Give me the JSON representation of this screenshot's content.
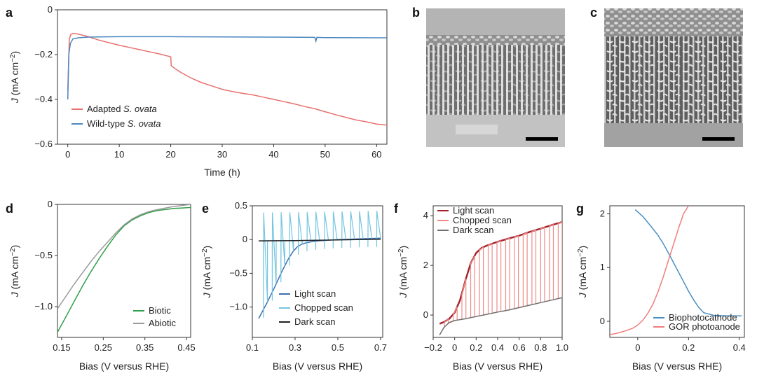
{
  "panel_labels": [
    "a",
    "b",
    "c",
    "d",
    "e",
    "f",
    "g"
  ],
  "chart_data": [
    {
      "panel": "a",
      "type": "line",
      "xlabel": "Time (h)",
      "ylabel_main": "J",
      "ylabel_unit": " (mA cm",
      "ylabel_sup": "−2",
      "ylabel_close": ")",
      "xlim": [
        -2,
        62
      ],
      "ylim": [
        -0.6,
        0
      ],
      "xticks": [
        0,
        10,
        20,
        30,
        40,
        50,
        60
      ],
      "yticks": [
        0,
        -0.2,
        -0.4,
        -0.6
      ],
      "ytick_labels": [
        "0",
        "−0.2",
        "−0.4",
        "−0.6"
      ],
      "series": [
        {
          "name_prefix": "Adapted ",
          "name_italic": "S. ovata",
          "color": "#e8706e",
          "x": [
            0,
            0.3,
            0.6,
            1,
            2,
            4,
            6,
            8,
            10,
            12,
            14,
            16,
            18,
            20,
            20.1,
            21,
            22,
            24,
            26,
            28,
            30,
            32,
            34,
            36,
            38,
            40,
            42,
            44,
            46,
            48,
            50,
            52,
            54,
            56,
            58,
            60,
            62
          ],
          "y": [
            -0.36,
            -0.13,
            -0.11,
            -0.105,
            -0.108,
            -0.12,
            -0.135,
            -0.147,
            -0.158,
            -0.168,
            -0.178,
            -0.188,
            -0.198,
            -0.21,
            -0.25,
            -0.265,
            -0.28,
            -0.305,
            -0.325,
            -0.34,
            -0.355,
            -0.365,
            -0.373,
            -0.38,
            -0.39,
            -0.4,
            -0.41,
            -0.42,
            -0.432,
            -0.442,
            -0.455,
            -0.468,
            -0.48,
            -0.492,
            -0.5,
            -0.51,
            -0.515
          ]
        },
        {
          "name_prefix": "Wild-type ",
          "name_italic": "S. ovata",
          "color": "#4a86c0",
          "x": [
            0,
            0.2,
            0.5,
            1,
            2,
            4,
            6,
            10,
            20,
            30,
            40,
            48,
            48.2,
            48.4,
            50,
            60,
            62
          ],
          "y": [
            -0.4,
            -0.2,
            -0.15,
            -0.13,
            -0.125,
            -0.122,
            -0.121,
            -0.12,
            -0.12,
            -0.121,
            -0.122,
            -0.123,
            -0.14,
            -0.123,
            -0.124,
            -0.125,
            -0.125
          ]
        }
      ]
    },
    {
      "panel": "b",
      "type": "image",
      "content": "SEM cross-section of vertical nanowire array with scale bar"
    },
    {
      "panel": "c",
      "type": "image",
      "content": "SEM cross-section of nanowire array covered with bacteria with scale bar"
    },
    {
      "panel": "d",
      "type": "line",
      "xlabel": "Bias (V versus RHE)",
      "ylabel_main": "J",
      "ylabel_unit": " (mA cm",
      "ylabel_sup": "−2",
      "ylabel_close": ")",
      "xlim": [
        0.14,
        0.46
      ],
      "ylim": [
        -1.3,
        0
      ],
      "xticks": [
        0.15,
        0.25,
        0.35,
        0.45
      ],
      "yticks": [
        0,
        -0.5,
        -1.0
      ],
      "ytick_labels": [
        "0",
        "−0.5",
        "−1.0"
      ],
      "series": [
        {
          "name": "Biotic",
          "color": "#2e9e48",
          "x": [
            0.14,
            0.16,
            0.18,
            0.2,
            0.22,
            0.24,
            0.26,
            0.28,
            0.3,
            0.32,
            0.34,
            0.36,
            0.38,
            0.4,
            0.42,
            0.44,
            0.46
          ],
          "y": [
            -1.25,
            -1.1,
            -0.95,
            -0.8,
            -0.66,
            -0.53,
            -0.41,
            -0.3,
            -0.21,
            -0.15,
            -0.11,
            -0.08,
            -0.06,
            -0.05,
            -0.04,
            -0.035,
            -0.03
          ]
        },
        {
          "name": "Abiotic",
          "color": "#9a9a9a",
          "x": [
            0.14,
            0.16,
            0.18,
            0.2,
            0.22,
            0.24,
            0.26,
            0.28,
            0.3,
            0.32,
            0.34,
            0.36,
            0.38,
            0.4,
            0.42,
            0.44,
            0.46
          ],
          "y": [
            -1.02,
            -0.9,
            -0.78,
            -0.67,
            -0.56,
            -0.46,
            -0.37,
            -0.28,
            -0.2,
            -0.14,
            -0.1,
            -0.07,
            -0.05,
            -0.035,
            -0.02,
            -0.01,
            0.0
          ]
        }
      ]
    },
    {
      "panel": "e",
      "type": "line",
      "xlabel": "Bias (V versus RHE)",
      "ylabel_main": "J",
      "ylabel_unit": " (mA cm",
      "ylabel_sup": "−2",
      "ylabel_close": ")",
      "xlim": [
        0.1,
        0.71
      ],
      "ylim": [
        -1.45,
        0.5
      ],
      "xticks": [
        0.1,
        0.3,
        0.5,
        0.7
      ],
      "yticks": [
        0.5,
        0,
        -0.5,
        -1.0
      ],
      "ytick_labels": [
        "0.5",
        "0",
        "−0.5",
        "−1.0"
      ],
      "series": [
        {
          "name": "Light scan",
          "color": "#3d6fb0",
          "x": [
            0.13,
            0.15,
            0.17,
            0.19,
            0.21,
            0.23,
            0.25,
            0.27,
            0.29,
            0.31,
            0.33,
            0.35,
            0.38,
            0.41,
            0.45,
            0.5,
            0.55,
            0.6,
            0.65,
            0.7
          ],
          "y": [
            -1.17,
            -1.05,
            -0.93,
            -0.8,
            -0.67,
            -0.53,
            -0.4,
            -0.28,
            -0.18,
            -0.11,
            -0.07,
            -0.05,
            -0.03,
            -0.02,
            -0.01,
            0.0,
            0.005,
            0.01,
            0.015,
            0.02
          ]
        },
        {
          "name": "Chopped scan",
          "color": "#73c6e0",
          "x": [
            0.13,
            0.7
          ],
          "y": [
            -1.3,
            0.02
          ]
        },
        {
          "name": "Dark scan",
          "color": "#222222",
          "x": [
            0.13,
            0.3,
            0.5,
            0.7
          ],
          "y": [
            -0.02,
            -0.015,
            -0.005,
            0.005
          ]
        }
      ]
    },
    {
      "panel": "f",
      "type": "line",
      "xlabel": "Bias (V versus RHE)",
      "ylabel_main": "J",
      "ylabel_unit": " (mA cm",
      "ylabel_sup": "−2",
      "ylabel_close": ")",
      "xlim": [
        -0.2,
        1.0
      ],
      "ylim": [
        -0.9,
        4.4
      ],
      "xticks": [
        -0.2,
        0,
        0.2,
        0.4,
        0.6,
        0.8,
        1.0
      ],
      "xtick_labels": [
        "−0.2",
        "0",
        "0.2",
        "0.4",
        "0.6",
        "0.8",
        "1.0"
      ],
      "yticks": [
        0,
        2,
        4
      ],
      "ytick_labels": [
        "0",
        "2",
        "4"
      ],
      "series": [
        {
          "name": "Light scan",
          "color": "#a3202a",
          "x": [
            -0.14,
            -0.1,
            -0.05,
            0.0,
            0.05,
            0.1,
            0.15,
            0.2,
            0.25,
            0.3,
            0.4,
            0.5,
            0.6,
            0.7,
            0.8,
            0.9,
            1.0
          ],
          "y": [
            -0.35,
            -0.28,
            -0.15,
            0.1,
            0.6,
            1.4,
            2.1,
            2.5,
            2.7,
            2.8,
            2.95,
            3.08,
            3.2,
            3.35,
            3.48,
            3.62,
            3.75
          ]
        },
        {
          "name": "Chopped scan",
          "color": "#ef8a86",
          "x": [
            -0.14,
            1.0
          ],
          "y": [
            -0.4,
            3.7
          ]
        },
        {
          "name": "Dark scan",
          "color": "#707070",
          "x": [
            -0.14,
            -0.1,
            -0.05,
            0.0,
            0.1,
            0.2,
            0.3,
            0.4,
            0.5,
            0.6,
            0.7,
            0.8,
            0.9,
            1.0
          ],
          "y": [
            -0.8,
            -0.5,
            -0.3,
            -0.22,
            -0.15,
            -0.06,
            0.03,
            0.12,
            0.2,
            0.3,
            0.4,
            0.5,
            0.6,
            0.7
          ]
        }
      ]
    },
    {
      "panel": "g",
      "type": "line",
      "xlabel": "Bias (V versus RHE)",
      "ylabel_main": "J",
      "ylabel_unit": " (mA cm",
      "ylabel_sup": "−2",
      "ylabel_close": ")",
      "xlim": [
        -0.11,
        0.42
      ],
      "ylim": [
        -0.3,
        2.15
      ],
      "xticks": [
        0,
        0.2,
        0.4
      ],
      "yticks": [
        0,
        1,
        2
      ],
      "ytick_labels": [
        "0",
        "1",
        "2"
      ],
      "series": [
        {
          "name": "Biophotocathode",
          "color": "#4a8fc2",
          "x": [
            -0.01,
            0.02,
            0.05,
            0.08,
            0.1,
            0.12,
            0.14,
            0.16,
            0.18,
            0.2,
            0.22,
            0.24,
            0.26,
            0.3,
            0.35,
            0.4,
            0.41
          ],
          "y": [
            2.08,
            1.95,
            1.78,
            1.6,
            1.45,
            1.28,
            1.1,
            0.92,
            0.74,
            0.56,
            0.4,
            0.26,
            0.16,
            0.11,
            0.1,
            0.1,
            0.1
          ]
        },
        {
          "name": "GOR photoanode",
          "color": "#ee7f7c",
          "x": [
            -0.11,
            -0.08,
            -0.05,
            -0.02,
            0.0,
            0.02,
            0.04,
            0.06,
            0.08,
            0.1,
            0.12,
            0.14,
            0.16,
            0.18,
            0.2
          ],
          "y": [
            -0.25,
            -0.22,
            -0.18,
            -0.13,
            -0.07,
            0.02,
            0.15,
            0.32,
            0.55,
            0.82,
            1.12,
            1.42,
            1.72,
            2.0,
            2.15
          ]
        }
      ]
    }
  ]
}
